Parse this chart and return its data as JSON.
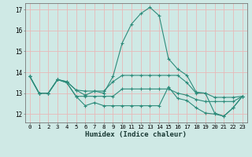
{
  "xlabel": "Humidex (Indice chaleur)",
  "ylabel": "",
  "background_color": "#cfe9e5",
  "grid_color": "#e8b8b8",
  "line_color": "#2d8b7a",
  "xlim": [
    -0.5,
    23.5
  ],
  "ylim": [
    11.6,
    17.3
  ],
  "yticks": [
    12,
    13,
    14,
    15,
    16,
    17
  ],
  "xticks": [
    0,
    1,
    2,
    3,
    4,
    5,
    6,
    7,
    8,
    9,
    10,
    11,
    12,
    13,
    14,
    15,
    16,
    17,
    18,
    19,
    20,
    21,
    22,
    23
  ],
  "x": [
    0,
    1,
    2,
    3,
    4,
    5,
    6,
    7,
    8,
    9,
    10,
    11,
    12,
    13,
    14,
    15,
    16,
    17,
    18,
    19,
    20,
    21,
    22,
    23
  ],
  "line_max": [
    13.8,
    13.0,
    13.0,
    13.65,
    13.55,
    13.15,
    12.9,
    13.1,
    13.0,
    13.8,
    15.4,
    16.3,
    16.8,
    17.1,
    16.7,
    14.65,
    14.15,
    13.85,
    13.05,
    13.0,
    12.05,
    11.9,
    12.3,
    12.85
  ],
  "line_avg_high": [
    13.8,
    13.0,
    13.0,
    13.65,
    13.55,
    13.15,
    13.1,
    13.1,
    13.1,
    13.55,
    13.85,
    13.85,
    13.85,
    13.85,
    13.85,
    13.85,
    13.85,
    13.5,
    13.0,
    13.0,
    12.8,
    12.8,
    12.8,
    12.85
  ],
  "line_avg_low": [
    13.8,
    13.0,
    13.0,
    13.65,
    13.5,
    12.85,
    12.85,
    12.85,
    12.85,
    12.85,
    13.2,
    13.2,
    13.2,
    13.2,
    13.2,
    13.2,
    13.0,
    12.9,
    12.7,
    12.6,
    12.6,
    12.6,
    12.6,
    12.85
  ],
  "line_min": [
    13.8,
    13.0,
    13.0,
    13.65,
    13.5,
    12.85,
    12.4,
    12.55,
    12.4,
    12.4,
    12.4,
    12.4,
    12.4,
    12.4,
    12.4,
    13.3,
    12.75,
    12.65,
    12.3,
    12.05,
    12.0,
    11.9,
    12.3,
    12.85
  ]
}
